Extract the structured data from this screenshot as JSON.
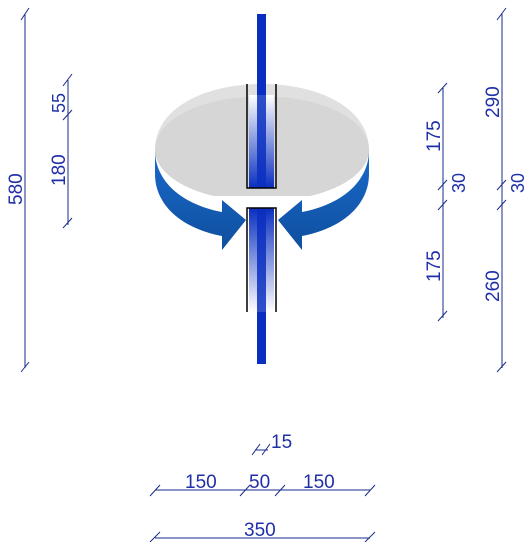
{
  "colors": {
    "dimension": "#1f2fa8",
    "column_blue": "#0a2fc0",
    "arrow_blue": "#1560b8",
    "ring_grey": "#d9d9d9",
    "outline": "#000000"
  },
  "dimensions": {
    "left_total": "580",
    "left_upper": "55",
    "left_lower": "180",
    "right_inner_top": "175",
    "right_inner_gap": "30",
    "right_inner_bottom": "175",
    "right_outer_top": "290",
    "right_outer_gap": "30",
    "right_outer_bottom": "260",
    "bottom_small": "15",
    "bottom_left": "150",
    "bottom_mid": "50",
    "bottom_right": "150",
    "bottom_total": "350"
  },
  "icons": [
    "rotation-arrow-icon"
  ]
}
